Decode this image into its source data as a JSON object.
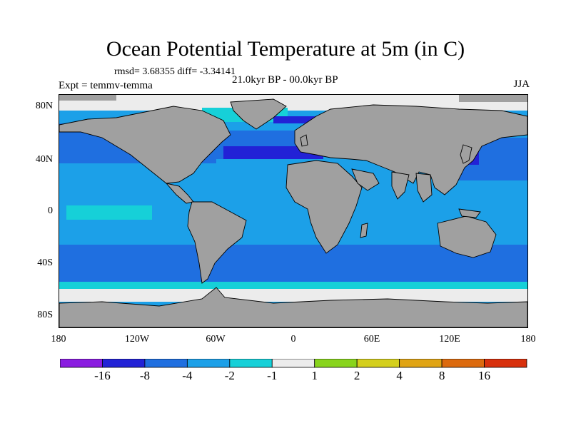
{
  "figure": {
    "title": "Ocean Potential Temperature at 5m (in C)",
    "stats": "rmsd= 3.68355 diff= -3.34141",
    "expt": "Expt = temmv-temma",
    "period": "21.0kyr BP - 00.0kyr BP",
    "season": "JJA"
  },
  "axes": {
    "lat_ticks": [
      "80N",
      "40N",
      "0",
      "40S",
      "80S"
    ],
    "lon_ticks": [
      "180",
      "120W",
      "60W",
      "0",
      "60E",
      "120E",
      "180"
    ],
    "land_color": "#a0a0a0",
    "grid": false
  },
  "colorbar": {
    "colors": [
      "#8a1ce0",
      "#2222d6",
      "#1f6fe0",
      "#1ca0e8",
      "#16d0d8",
      "#ececec",
      "#88d41c",
      "#d4cf1c",
      "#e0a414",
      "#dc6a0e",
      "#d8300c"
    ],
    "labels": [
      "-16",
      "-8",
      "-4",
      "-2",
      "-1",
      "1",
      "2",
      "4",
      "8",
      "16"
    ]
  }
}
